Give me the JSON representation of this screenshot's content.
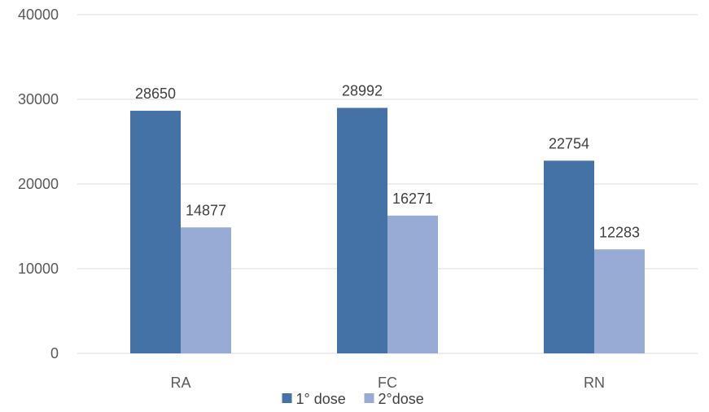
{
  "chart_data": {
    "type": "bar",
    "categories": [
      "RA",
      "FC",
      "RN"
    ],
    "series": [
      {
        "name": "1° dose",
        "values": [
          28650,
          28992,
          22754
        ],
        "color": "#4472a6"
      },
      {
        "name": "2°dose",
        "values": [
          14877,
          16271,
          12283
        ],
        "color": "#98abd4"
      }
    ],
    "y_ticks": [
      "0",
      "10000",
      "20000",
      "30000",
      "40000"
    ],
    "ylim": [
      0,
      40000
    ],
    "grid": true,
    "legend_position": "bottom",
    "title": "",
    "xlabel": "",
    "ylabel": ""
  }
}
